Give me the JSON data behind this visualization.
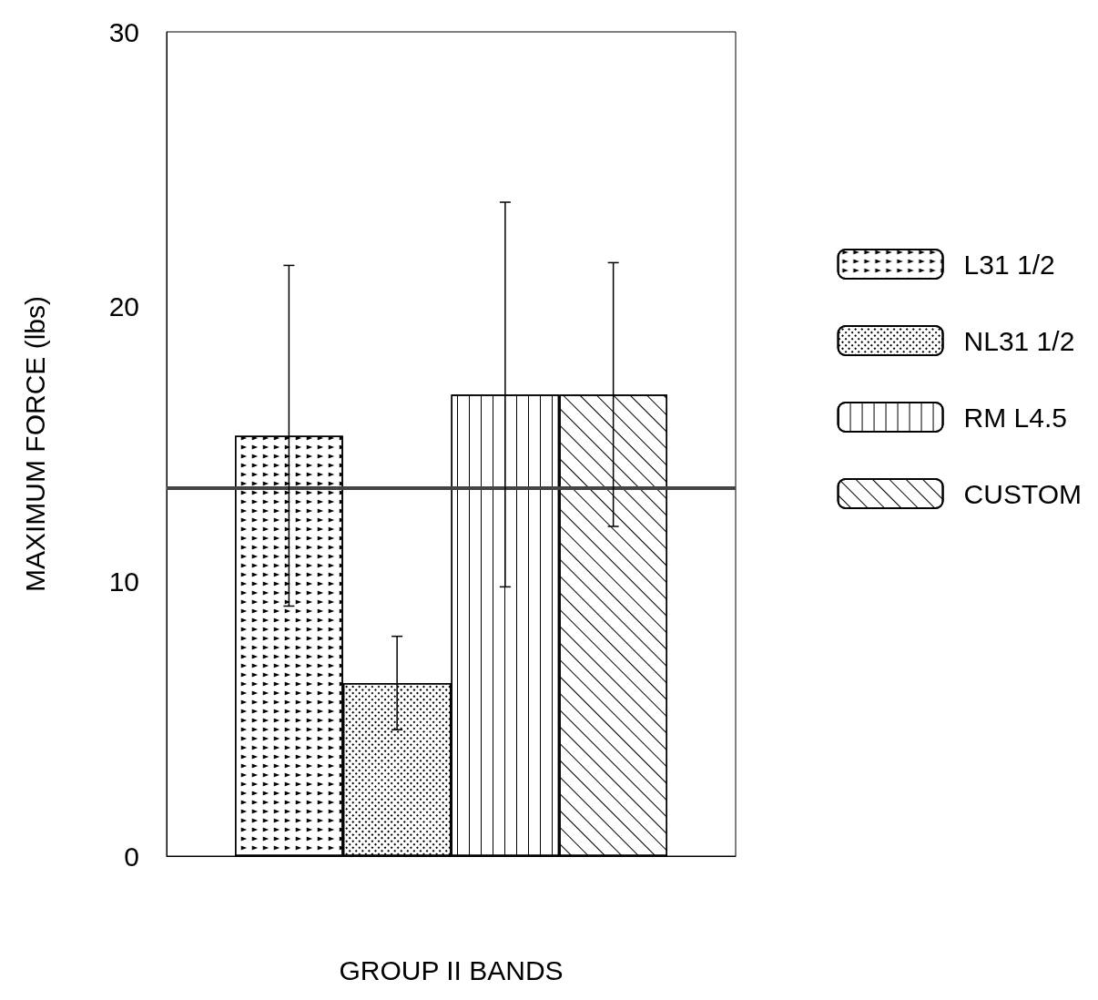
{
  "chart_data": {
    "type": "bar",
    "xlabel": "GROUP II BANDS",
    "ylabel": "MAXIMUM FORCE (lbs)",
    "categories": [
      null
    ],
    "series": [
      {
        "name": "L31 1/2",
        "color": "#ffffff",
        "values": [
          15.3
        ],
        "errors": [
          6.2
        ]
      },
      {
        "name": "NL31 1/2",
        "color": "#ffffff",
        "values": [
          6.3
        ],
        "errors": [
          1.7
        ]
      },
      {
        "name": "RM L4.5",
        "color": "#ffffff",
        "values": [
          16.8
        ],
        "errors": [
          7
        ]
      },
      {
        "name": "CUSTOM",
        "color": "#ffffff",
        "values": [
          16.8
        ],
        "errors": [
          4.8
        ]
      }
    ],
    "ylim": [
      0,
      30
    ],
    "yticks": [
      0,
      10,
      20,
      30
    ],
    "grid": false,
    "legend": "right",
    "ref_lines": [
      {
        "axis": "y",
        "value": 13.4,
        "color": "#444444"
      }
    ]
  }
}
